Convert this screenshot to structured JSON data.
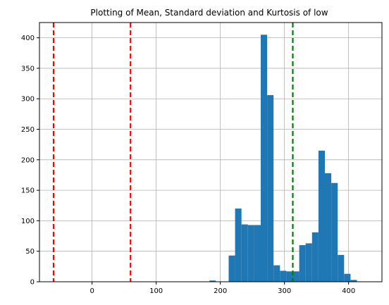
{
  "chart_data": {
    "type": "bar",
    "subtype": "histogram",
    "title": "Plotting of Mean, Standard deviation and Kurtosis of low",
    "xlabel": "",
    "ylabel": "",
    "xlim": [
      -82,
      452
    ],
    "ylim": [
      0,
      425
    ],
    "grid": true,
    "x_ticks": [
      0,
      100,
      200,
      300,
      400
    ],
    "y_ticks": [
      0,
      50,
      100,
      150,
      200,
      250,
      300,
      350,
      400
    ],
    "bar_color": "#1f77b4",
    "bin_edges": [
      183,
      193,
      203,
      213,
      223,
      233,
      243,
      253,
      263,
      273,
      283,
      293,
      303,
      313,
      323,
      333,
      343,
      353,
      363,
      373,
      383,
      393,
      403,
      413,
      423,
      433,
      443
    ],
    "counts": [
      2,
      0,
      0,
      43,
      120,
      94,
      93,
      93,
      405,
      306,
      27,
      18,
      17,
      17,
      60,
      63,
      81,
      215,
      178,
      162,
      44,
      13,
      3,
      0,
      0,
      0
    ],
    "reference_lines": [
      {
        "x": -60,
        "color": "#ff0000",
        "style": "dashed"
      },
      {
        "x": 60,
        "color": "#ff0000",
        "style": "dashed"
      },
      {
        "x": 313,
        "color": "#008000",
        "style": "dashed"
      }
    ]
  }
}
